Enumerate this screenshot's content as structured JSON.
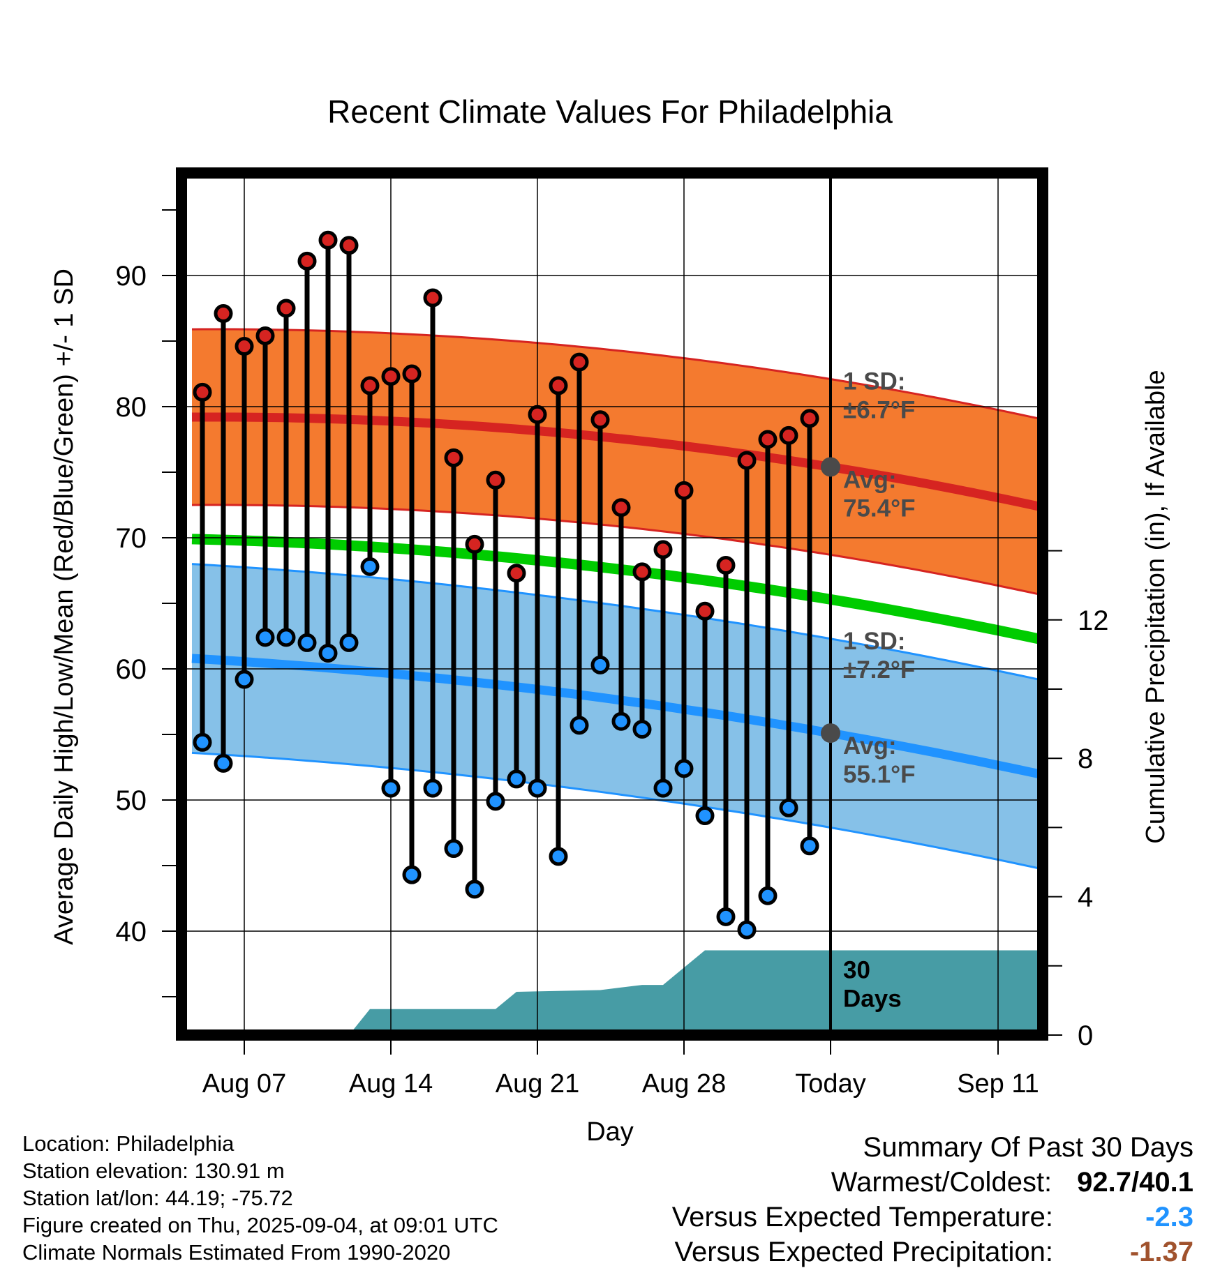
{
  "chart_data": {
    "type": "line",
    "title": "Recent Climate Values For Philadelphia",
    "xlabel": "Day",
    "ylabel": "Average Daily High/Low/Mean (Red/Blue/Green) +/- 1 SD",
    "y2label": "Cumulative Precipitation (in), If Available",
    "x_ticks": [
      "Aug 07",
      "Aug 14",
      "Aug 21",
      "Aug 28",
      "Today",
      "Sep 11"
    ],
    "y_ticks": [
      "40",
      "50",
      "60",
      "70",
      "80",
      "90"
    ],
    "y2_ticks": [
      "0",
      "4",
      "8",
      "12"
    ],
    "ylim": [
      32,
      98
    ],
    "y2lim": [
      0,
      24
    ],
    "dates": [
      "Aug 05",
      "Aug 06",
      "Aug 07",
      "Aug 08",
      "Aug 09",
      "Aug 10",
      "Aug 11",
      "Aug 12",
      "Aug 13",
      "Aug 14",
      "Aug 15",
      "Aug 16",
      "Aug 17",
      "Aug 18",
      "Aug 19",
      "Aug 20",
      "Aug 21",
      "Aug 22",
      "Aug 23",
      "Aug 24",
      "Aug 25",
      "Aug 26",
      "Aug 27",
      "Aug 28",
      "Aug 29",
      "Aug 30",
      "Aug 31",
      "Sep 01",
      "Sep 02",
      "Sep 03"
    ],
    "daily_high": [
      81.1,
      87.1,
      84.6,
      85.4,
      87.5,
      91.1,
      92.7,
      92.3,
      81.6,
      82.3,
      82.5,
      88.3,
      76.1,
      69.5,
      74.4,
      67.3,
      79.4,
      81.6,
      83.4,
      79.0,
      72.3,
      67.4,
      69.1,
      73.6,
      64.4,
      67.9,
      75.9,
      77.5,
      77.8,
      79.1
    ],
    "daily_low": [
      54.4,
      52.8,
      59.2,
      62.4,
      62.4,
      62.0,
      61.2,
      62.0,
      67.8,
      50.9,
      44.3,
      50.9,
      46.3,
      43.2,
      49.9,
      51.6,
      50.9,
      45.7,
      55.7,
      60.3,
      56.0,
      55.4,
      50.9,
      52.4,
      48.8,
      41.1,
      40.1,
      42.7,
      49.4,
      46.5
    ],
    "normal_high": {
      "start": 79.2,
      "today": 75.4,
      "end": 72.2,
      "sd": 6.7
    },
    "normal_low": {
      "start": 60.8,
      "today": 55.1,
      "end": 51.8,
      "sd": 7.2
    },
    "normal_mean": {
      "start": 69.9,
      "today": 65.3,
      "end": 62.1
    },
    "precip": {
      "dates": [
        "Aug 12",
        "Aug 13",
        "Aug 19",
        "Aug 20",
        "Aug 24",
        "Aug 26",
        "Aug 27",
        "Aug 29",
        "Today",
        "Sep 13"
      ],
      "values": [
        0.0,
        0.75,
        0.75,
        1.25,
        1.3,
        1.45,
        1.45,
        2.45,
        2.45,
        2.45
      ]
    },
    "annotations": {
      "high_sd": "1 SD:\n±6.7°F",
      "high_avg": "Avg:\n75.4°F",
      "low_sd": "1 SD:\n±7.2°F",
      "low_avg": "Avg:\n55.1°F",
      "days": "30\nDays"
    },
    "colors": {
      "high": "#d62421",
      "high_band": "#f47a2f",
      "low": "#2093ff",
      "low_band": "#86c1e8",
      "mean": "#00cc00",
      "precip": "#479ca5",
      "avg_dot": "#4a4a4a"
    }
  },
  "footer": {
    "location": "Location: Philadelphia",
    "elevation": "Station elevation: 130.91 m",
    "latlon": "Station lat/lon: 44.19; -75.72",
    "created": "Figure created on Thu, 2025-09-04, at 09:01 UTC",
    "normals": "Climate Normals Estimated From 1990-2020"
  },
  "summary": {
    "title": "Summary Of Past 30 Days",
    "warmest_label": "Warmest/Coldest:",
    "warmest_value": "92.7/40.1",
    "temp_label": "Versus Expected Temperature:",
    "temp_value": "-2.3",
    "temp_color": "#2093ff",
    "precip_label": "Versus Expected Precipitation:",
    "precip_value": "-1.37",
    "precip_color": "#a0522d"
  }
}
